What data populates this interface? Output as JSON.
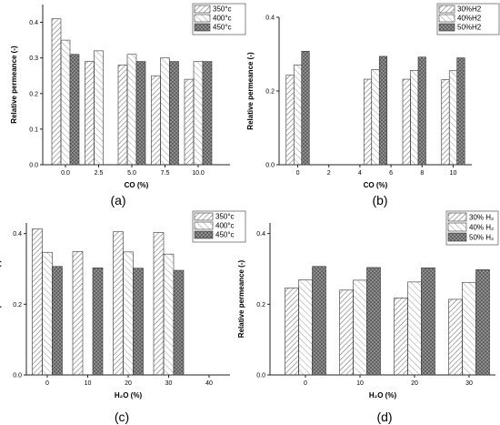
{
  "colors": {
    "axis": "#222222",
    "bar_stroke": "#333333",
    "series_fill": [
      "#e6e6e6",
      "#cfcfcf",
      "#9a9a9a"
    ]
  },
  "chart_data": [
    {
      "type": "bar",
      "panel_label": "(a)",
      "xlabel": "CO (%)",
      "ylabel": "Relative permeance (-)",
      "ylim": [
        0.0,
        0.45
      ],
      "yticks": [
        "0.0",
        "0.1",
        "0.2",
        "0.3",
        "0.4"
      ],
      "categories": [
        "0.0",
        "2.5",
        "5.0",
        "7.5",
        "10.0"
      ],
      "legend_position": "top-right",
      "series": [
        {
          "name": "350°c",
          "values": [
            0.41,
            0.29,
            0.28,
            0.25,
            0.24
          ]
        },
        {
          "name": "400°c",
          "values": [
            0.35,
            0.32,
            0.31,
            0.3,
            0.29
          ]
        },
        {
          "name": "450°c",
          "values": [
            0.31,
            null,
            0.29,
            0.29,
            0.29
          ]
        }
      ]
    },
    {
      "type": "bar",
      "panel_label": "(b)",
      "xlabel": "CO (%)",
      "ylabel": "Relative permeance (-)",
      "ylim": [
        0.0,
        0.4
      ],
      "yticks": [
        "0.0",
        "0.2",
        "0.4"
      ],
      "xticks": [
        "0",
        "2",
        "4",
        "6",
        "8",
        "10"
      ],
      "categories": [
        "0",
        "5",
        "7.5",
        "10"
      ],
      "legend_position": "top-right",
      "series": [
        {
          "name": "30%H2",
          "values": [
            0.243,
            0.232,
            0.232,
            0.231
          ]
        },
        {
          "name": "40%H2",
          "values": [
            0.271,
            0.258,
            0.256,
            0.255
          ]
        },
        {
          "name": "50%H2",
          "values": [
            0.308,
            0.294,
            0.292,
            0.29
          ]
        }
      ]
    },
    {
      "type": "bar",
      "panel_label": "(c)",
      "xlabel": "H₂O (%)",
      "ylabel": "Relative permeance (-)",
      "ylim": [
        0.0,
        0.43
      ],
      "yticks": [
        "0.0",
        "0.2",
        "0.4"
      ],
      "categories": [
        "0",
        "10",
        "20",
        "30",
        "40"
      ],
      "legend_position": "top-right",
      "series": [
        {
          "name": "350°c",
          "values": [
            0.413,
            0.349,
            0.405,
            0.403,
            null
          ]
        },
        {
          "name": "400°c",
          "values": [
            0.347,
            null,
            0.348,
            0.342,
            null
          ]
        },
        {
          "name": "450°c",
          "values": [
            0.307,
            0.303,
            0.302,
            0.296,
            null
          ]
        }
      ]
    },
    {
      "type": "bar",
      "panel_label": "(d)",
      "xlabel": "H₂O (%)",
      "ylabel": "Relative permeance (-)",
      "ylim": [
        0.0,
        0.43
      ],
      "yticks": [
        "0.0",
        "0.2",
        "0.4"
      ],
      "categories": [
        "0",
        "10",
        "20",
        "30"
      ],
      "legend_position": "top-right",
      "series": [
        {
          "name": "30% H₂",
          "values": [
            0.246,
            0.24,
            0.218,
            0.214
          ]
        },
        {
          "name": "40% H₂",
          "values": [
            0.269,
            0.268,
            0.263,
            0.262
          ]
        },
        {
          "name": "50% H₂",
          "values": [
            0.307,
            0.304,
            0.303,
            0.298
          ]
        }
      ]
    }
  ]
}
